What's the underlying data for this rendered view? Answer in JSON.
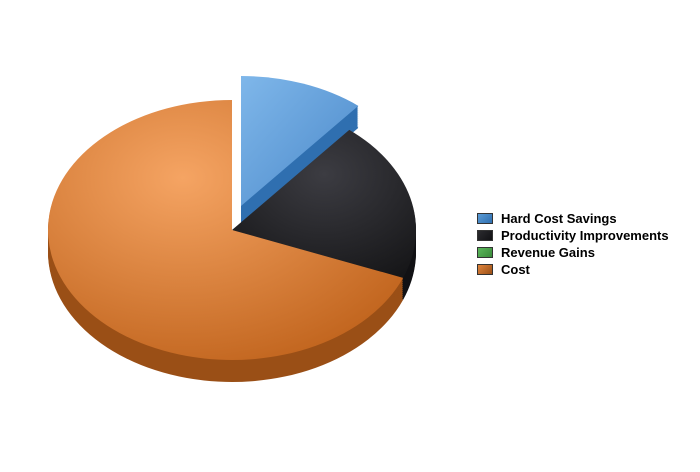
{
  "chart_data": {
    "type": "pie",
    "title": "",
    "style": "3d-exploded",
    "categories": [
      "Hard Cost Savings",
      "Productivity Improvements",
      "Revenue Gains",
      "Cost"
    ],
    "values": [
      0.11,
      0.2,
      0.0,
      0.69
    ],
    "exploded": [
      "Hard Cost Savings"
    ],
    "colors": [
      "#5b9bd5",
      "#2b2b2f",
      "#5cb85c",
      "#e0853d"
    ],
    "dark_colors": [
      "#2f6fb0",
      "#111114",
      "#3a8a3a",
      "#9a4f16"
    ],
    "legend_position": "right"
  }
}
